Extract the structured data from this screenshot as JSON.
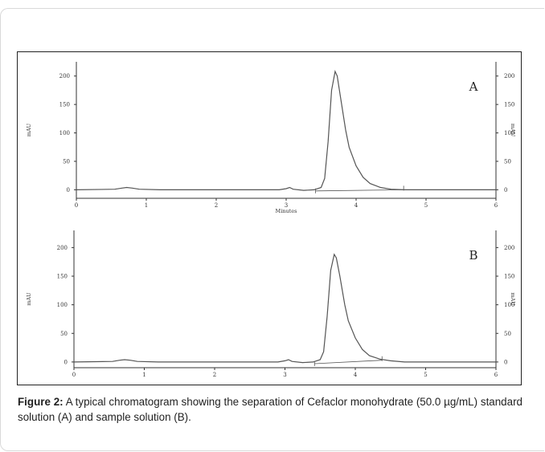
{
  "caption": {
    "label": "Figure 2:",
    "text": "A typical chromatogram showing the separation of Cefaclor monohydrate (50.0 µg/mL) standard solution (A) and sample solution (B)."
  },
  "colors": {
    "trace": "#555555",
    "axis": "#333333",
    "border": "#222222"
  },
  "chart_data": [
    {
      "type": "line",
      "panel_label": "A",
      "xlabel": "Minutes",
      "ylabel": "mAU",
      "ylabel_right": "mAU",
      "xlim": [
        0,
        6
      ],
      "ylim": [
        -15,
        225
      ],
      "x_ticks": [
        0,
        1,
        2,
        3,
        4,
        5,
        6
      ],
      "y_ticks": [
        0,
        50,
        100,
        150,
        200
      ],
      "series": [
        {
          "x": [
            0,
            0.55,
            0.65,
            0.72,
            0.8,
            0.9,
            1.2,
            2.0,
            2.9,
            3.0,
            3.05,
            3.1,
            3.25,
            3.4,
            3.5,
            3.55,
            3.6,
            3.65,
            3.7,
            3.73,
            3.78,
            3.85,
            3.9,
            4.0,
            4.1,
            4.2,
            4.35,
            4.5,
            4.7,
            5.0,
            6.0
          ],
          "y": [
            0,
            1,
            3,
            4,
            3,
            1,
            0,
            0,
            0,
            2,
            4,
            1,
            -1,
            0,
            4,
            20,
            85,
            175,
            208,
            200,
            160,
            105,
            75,
            42,
            22,
            11,
            4,
            1,
            0,
            0,
            0
          ]
        },
        {
          "name": "baseline",
          "x": [
            3.42,
            4.68
          ],
          "y": [
            -2,
            0
          ]
        }
      ]
    },
    {
      "type": "line",
      "panel_label": "B",
      "xlabel": "",
      "ylabel": "mAU",
      "ylabel_right": "mAU",
      "xlim": [
        0,
        6
      ],
      "ylim": [
        -10,
        230
      ],
      "x_ticks": [
        0,
        1,
        2,
        3,
        4,
        5,
        6
      ],
      "y_ticks": [
        0,
        50,
        100,
        150,
        200
      ],
      "series": [
        {
          "x": [
            0,
            0.55,
            0.65,
            0.72,
            0.8,
            0.9,
            1.2,
            2.0,
            2.9,
            3.0,
            3.05,
            3.1,
            3.25,
            3.4,
            3.5,
            3.55,
            3.6,
            3.65,
            3.7,
            3.73,
            3.78,
            3.85,
            3.9,
            4.0,
            4.1,
            4.2,
            4.35,
            4.5,
            4.7,
            5.0,
            6.0
          ],
          "y": [
            0,
            1,
            3,
            4,
            3,
            1,
            0,
            0,
            0,
            2,
            4,
            1,
            -1,
            0,
            4,
            18,
            80,
            160,
            188,
            182,
            150,
            100,
            72,
            42,
            22,
            11,
            5,
            2,
            0,
            0,
            0
          ]
        },
        {
          "name": "baseline",
          "x": [
            3.42,
            4.38
          ],
          "y": [
            -3,
            3
          ]
        }
      ]
    }
  ]
}
